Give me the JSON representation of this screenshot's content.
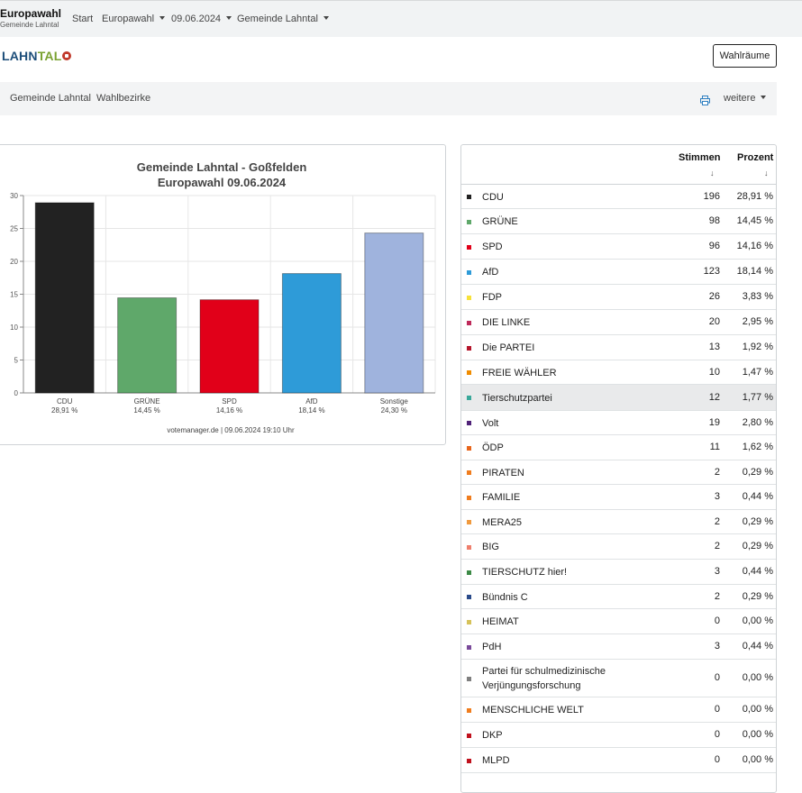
{
  "header": {
    "title": "Europawahl",
    "subtitle": "Gemeinde Lahntal",
    "nav": [
      "Start",
      "Europawahl",
      "09.06.2024",
      "Gemeinde Lahntal"
    ]
  },
  "logo": {
    "part1": "LAHN",
    "part2": "TAL"
  },
  "wahlraeume_button": "Wahlräume",
  "subnav": {
    "link1": "Gemeinde Lahntal",
    "link2": "Wahlbezirke",
    "more": "weitere"
  },
  "chart_data": {
    "type": "bar",
    "title": "Gemeinde Lahntal - Goßfelden",
    "subtitle": "Europawahl 09.06.2024",
    "categories": [
      "CDU",
      "GRÜNE",
      "SPD",
      "AfD",
      "Sonstige"
    ],
    "values": [
      28.91,
      14.45,
      14.16,
      18.14,
      24.3
    ],
    "value_labels": [
      "28,91 %",
      "14,45 %",
      "14,16 %",
      "18,14 %",
      "24,30 %"
    ],
    "colors": [
      "#222222",
      "#5fa86a",
      "#e10019",
      "#2e9bd8",
      "#9fb3dd"
    ],
    "ylim": [
      0,
      30
    ],
    "yticks": [
      0,
      5,
      10,
      15,
      20,
      25,
      30
    ],
    "grid": true,
    "footer": "votemanager.de | 09.06.2024 19:10 Uhr"
  },
  "table": {
    "headers": {
      "votes": "Stimmen",
      "percent": "Prozent",
      "sort_arrow": "↓"
    },
    "rows": [
      {
        "name": "CDU",
        "votes": "196",
        "pct": "28,91 %",
        "color": "#222222"
      },
      {
        "name": "GRÜNE",
        "votes": "98",
        "pct": "14,45 %",
        "color": "#5fa86a"
      },
      {
        "name": "SPD",
        "votes": "96",
        "pct": "14,16 %",
        "color": "#e10019"
      },
      {
        "name": "AfD",
        "votes": "123",
        "pct": "18,14 %",
        "color": "#2e9bd8"
      },
      {
        "name": "FDP",
        "votes": "26",
        "pct": "3,83 %",
        "color": "#f7e23a"
      },
      {
        "name": "DIE LINKE",
        "votes": "20",
        "pct": "2,95 %",
        "color": "#be2a5a"
      },
      {
        "name": "Die PARTEI",
        "votes": "13",
        "pct": "1,92 %",
        "color": "#b5152b"
      },
      {
        "name": "FREIE WÄHLER",
        "votes": "10",
        "pct": "1,47 %",
        "color": "#f08c00"
      },
      {
        "name": "Tierschutzpartei",
        "votes": "12",
        "pct": "1,77 %",
        "color": "#3aa89a"
      },
      {
        "name": "Volt",
        "votes": "19",
        "pct": "2,80 %",
        "color": "#502379"
      },
      {
        "name": "ÖDP",
        "votes": "11",
        "pct": "1,62 %",
        "color": "#e8651b"
      },
      {
        "name": "PIRATEN",
        "votes": "2",
        "pct": "0,29 %",
        "color": "#f07d1e"
      },
      {
        "name": "FAMILIE",
        "votes": "3",
        "pct": "0,44 %",
        "color": "#f07d1e"
      },
      {
        "name": "MERA25",
        "votes": "2",
        "pct": "0,29 %",
        "color": "#f09a3e"
      },
      {
        "name": "BIG",
        "votes": "2",
        "pct": "0,29 %",
        "color": "#ef7f6d"
      },
      {
        "name": "TIERSCHUTZ hier!",
        "votes": "3",
        "pct": "0,44 %",
        "color": "#3c8a46"
      },
      {
        "name": "Bündnis C",
        "votes": "2",
        "pct": "0,29 %",
        "color": "#2a4b8a"
      },
      {
        "name": "HEIMAT",
        "votes": "0",
        "pct": "0,00 %",
        "color": "#d6c25a"
      },
      {
        "name": "PdH",
        "votes": "3",
        "pct": "0,44 %",
        "color": "#7a4a9a"
      },
      {
        "name": "Partei für schulmedizinische Verjüngungsforschung",
        "votes": "0",
        "pct": "0,00 %",
        "color": "#7f7f7f"
      },
      {
        "name": "MENSCHLICHE WELT",
        "votes": "0",
        "pct": "0,00 %",
        "color": "#f07d1e"
      },
      {
        "name": "DKP",
        "votes": "0",
        "pct": "0,00 %",
        "color": "#c0111d"
      },
      {
        "name": "MLPD",
        "votes": "0",
        "pct": "0,00 %",
        "color": "#c0111d"
      }
    ]
  }
}
